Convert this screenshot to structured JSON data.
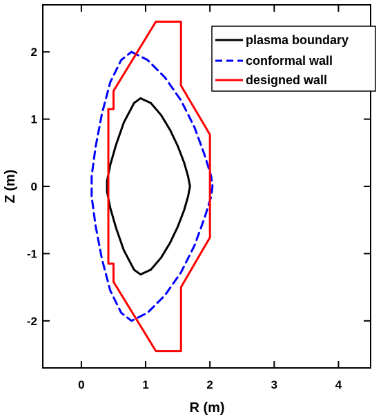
{
  "chart_data": {
    "type": "line",
    "xlabel": "R (m)",
    "ylabel": "Z (m)",
    "xlim": [
      -0.6,
      4.5
    ],
    "ylim": [
      -2.7,
      2.7
    ],
    "xticks": [
      0,
      1,
      2,
      3,
      4
    ],
    "yticks": [
      -2,
      -1,
      0,
      1,
      2
    ],
    "xtick_labels": [
      "0",
      "1",
      "2",
      "3",
      "4"
    ],
    "ytick_labels": [
      "-2",
      "-1",
      "0",
      "1",
      "2"
    ],
    "grid": false,
    "legend": {
      "placement": "top-right"
    },
    "series": [
      {
        "name": "plasma boundary",
        "color": "#000000",
        "style": "solid",
        "x": [
          0.92,
          1.08,
          1.24,
          1.38,
          1.5,
          1.6,
          1.66,
          1.69,
          1.66,
          1.6,
          1.5,
          1.38,
          1.24,
          1.08,
          0.92,
          0.82,
          0.66,
          0.54,
          0.45,
          0.4,
          0.4,
          0.45,
          0.54,
          0.66,
          0.82,
          0.92
        ],
        "y": [
          1.31,
          1.24,
          1.06,
          0.84,
          0.6,
          0.35,
          0.15,
          0.0,
          -0.15,
          -0.35,
          -0.6,
          -0.84,
          -1.06,
          -1.24,
          -1.31,
          -1.24,
          -0.95,
          -0.62,
          -0.32,
          -0.08,
          0.08,
          0.32,
          0.62,
          0.95,
          1.24,
          1.31
        ]
      },
      {
        "name": "conformal wall",
        "color": "#0000ff",
        "style": "dashed",
        "x": [
          0.78,
          1.03,
          1.3,
          1.55,
          1.76,
          1.92,
          2.02,
          2.04,
          2.02,
          1.92,
          1.76,
          1.55,
          1.3,
          1.03,
          0.78,
          0.62,
          0.45,
          0.32,
          0.22,
          0.16,
          0.16,
          0.22,
          0.32,
          0.45,
          0.62,
          0.78
        ],
        "y": [
          2.0,
          1.88,
          1.62,
          1.28,
          0.88,
          0.46,
          0.15,
          0.0,
          -0.15,
          -0.46,
          -0.88,
          -1.28,
          -1.62,
          -1.88,
          -2.0,
          -1.88,
          -1.55,
          -1.08,
          -0.58,
          -0.15,
          0.15,
          0.58,
          1.08,
          1.55,
          1.88,
          2.0
        ]
      },
      {
        "name": "designed wall",
        "color": "#ff0000",
        "style": "solid",
        "x": [
          1.16,
          1.55,
          1.55,
          2.0,
          2.0,
          1.55,
          1.55,
          1.16,
          0.5,
          0.5,
          0.42,
          0.42,
          0.5,
          0.5,
          1.16
        ],
        "y": [
          2.45,
          2.45,
          1.5,
          0.77,
          -0.76,
          -1.5,
          -2.45,
          -2.45,
          -1.42,
          -1.15,
          -1.15,
          1.15,
          1.15,
          1.42,
          2.45
        ]
      }
    ]
  }
}
